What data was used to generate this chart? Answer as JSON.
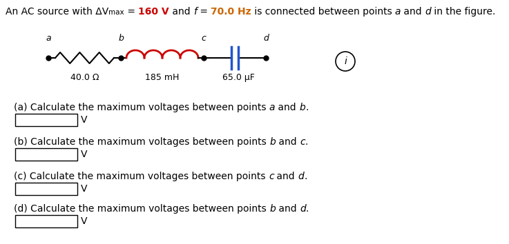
{
  "bg_color": "#ffffff",
  "text_color": "#000000",
  "red_color": "#cc0000",
  "orange_color": "#cc6600",
  "blue_color": "#2255cc",
  "wire_color": "#000000",
  "inductor_color": "#cc0000",
  "capacitor_color": "#2255cc",
  "font_size": 10,
  "font_size_circuit": 9,
  "resistor_label": "40.0 Ω",
  "inductor_label": "185 mH",
  "capacitor_label": "65.0 μF",
  "point_a": "a",
  "point_b": "b",
  "point_c": "c",
  "point_d": "d",
  "v_value": "160",
  "f_value": "70.0",
  "questions": [
    [
      "(a) Calculate the maximum voltages between points ",
      "a",
      " and ",
      "b",
      "."
    ],
    [
      "(b) Calculate the maximum voltages between points ",
      "b",
      " and ",
      "c",
      "."
    ],
    [
      "(c) Calculate the maximum voltages between points ",
      "c",
      " and ",
      "d",
      "."
    ],
    [
      "(d) Calculate the maximum voltages between points ",
      "b",
      " and ",
      "d",
      "."
    ]
  ]
}
